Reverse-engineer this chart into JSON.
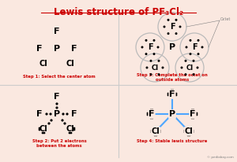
{
  "title": "Lewis structure of PF₃Cl₂",
  "bg_color": "#fae8e0",
  "title_color": "#cc0000",
  "step_color": "#cc0000",
  "bond_color": "#4da6ff",
  "atom_color": "#000000",
  "dot_color": "#000000",
  "circle_color": "#aaaaaa",
  "divider_color": "#cccccc",
  "step1_label": "Step 1: Select the center atom",
  "step2_label": "Step 2: Put 2 electrons\nbetween the atoms",
  "step3_label": "Step 3: Complete the octet on\noutside atoms",
  "step4_label": "Step 4: Stable lewis structure",
  "watermark": "© pediabay.com",
  "octet_label": "Octet"
}
